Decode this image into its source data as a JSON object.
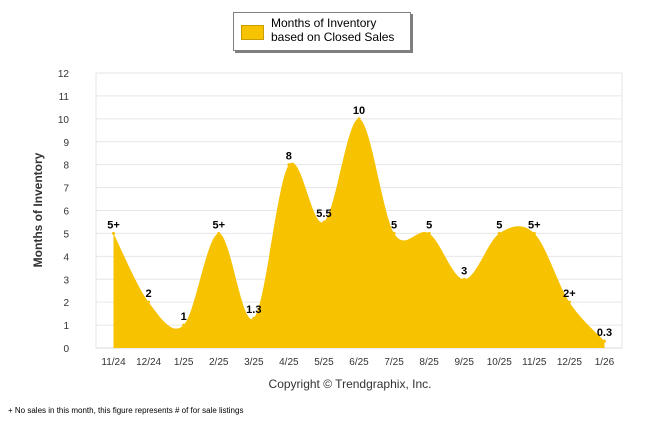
{
  "chart_data": {
    "type": "area",
    "categories": [
      "11/24",
      "12/24",
      "1/25",
      "2/25",
      "3/25",
      "4/25",
      "5/25",
      "6/25",
      "7/25",
      "8/25",
      "9/25",
      "10/25",
      "11/25",
      "12/25",
      "1/26"
    ],
    "series": [
      {
        "name": "Months of Inventory based on Closed Sales",
        "values": [
          5,
          2,
          1,
          5,
          1.3,
          8,
          5.5,
          10,
          5,
          5,
          3,
          5,
          5,
          2,
          0.3
        ]
      }
    ],
    "data_labels": [
      "5+",
      "2",
      "1",
      "5+",
      "1.3",
      "8",
      "5.5",
      "10",
      "5",
      "5",
      "3",
      "5",
      "5+",
      "2+",
      "0.3"
    ],
    "ylabel": "Months of Inventory",
    "xlabel": "",
    "ylim": [
      0,
      12
    ],
    "yticks": [
      0,
      1,
      2,
      3,
      4,
      5,
      6,
      7,
      8,
      9,
      10,
      11,
      12
    ],
    "grid": true,
    "legend_position": "top-center",
    "copyright": "Copyright © Trendgraphix, Inc.",
    "footnote": "+  No sales in this month, this figure represents # of for sale listings",
    "colors": {
      "fill": "#f7c200",
      "grid": "#e6e6e6",
      "axis": "#d9d9d9",
      "text": "#000000",
      "tick": "#333333"
    }
  }
}
